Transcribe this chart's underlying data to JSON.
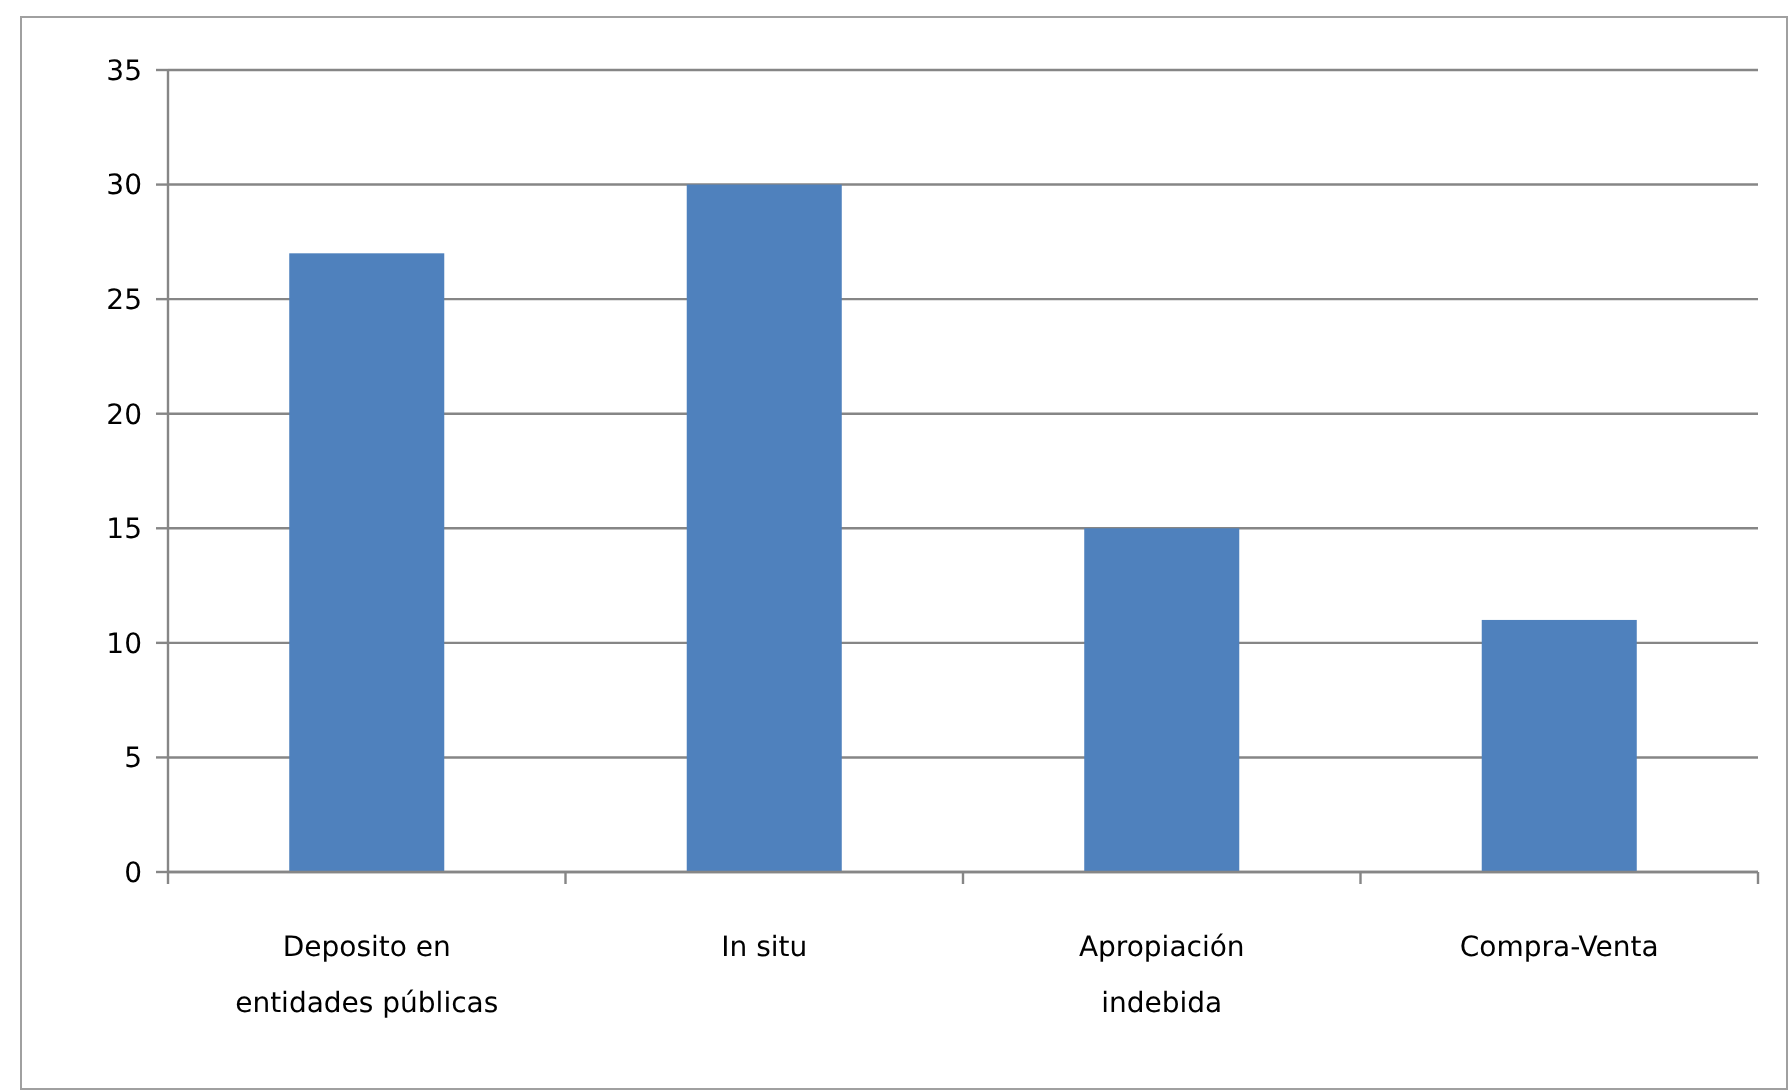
{
  "chart_data": {
    "type": "bar",
    "categories": [
      "Deposito en entidades públicas",
      "In situ",
      "Apropiación indebida",
      "Compra-Venta"
    ],
    "values": [
      27,
      30,
      15,
      11
    ],
    "color": "#4f81bd",
    "ylim": [
      0,
      35
    ],
    "yticks": [
      0,
      5,
      10,
      15,
      20,
      25,
      30,
      35
    ],
    "grid": "y"
  }
}
